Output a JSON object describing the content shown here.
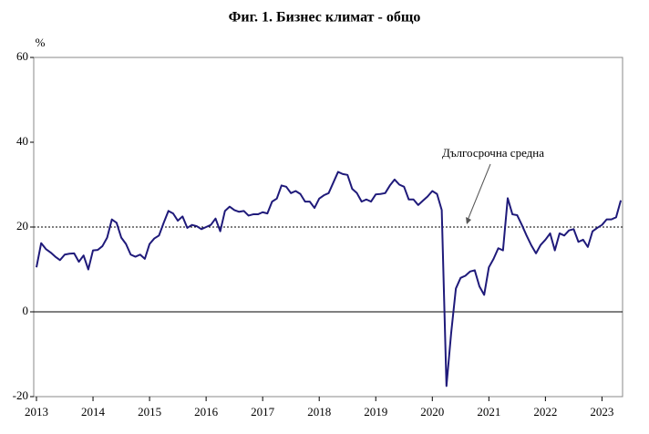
{
  "chart_data": {
    "type": "line",
    "title": "Фиг. 1. Бизнес климат - общо",
    "y_unit": "%",
    "categories": [
      "2013",
      null,
      null,
      null,
      null,
      null,
      null,
      null,
      null,
      null,
      null,
      null,
      "2014",
      null,
      null,
      null,
      null,
      null,
      null,
      null,
      null,
      null,
      null,
      null,
      "2015",
      null,
      null,
      null,
      null,
      null,
      null,
      null,
      null,
      null,
      null,
      null,
      "2016",
      null,
      null,
      null,
      null,
      null,
      null,
      null,
      null,
      null,
      null,
      null,
      "2017",
      null,
      null,
      null,
      null,
      null,
      null,
      null,
      null,
      null,
      null,
      null,
      "2018",
      null,
      null,
      null,
      null,
      null,
      null,
      null,
      null,
      null,
      null,
      null,
      "2019",
      null,
      null,
      null,
      null,
      null,
      null,
      null,
      null,
      null,
      null,
      null,
      "2020",
      null,
      null,
      null,
      null,
      null,
      null,
      null,
      null,
      null,
      null,
      null,
      "2021",
      null,
      null,
      null,
      null,
      null,
      null,
      null,
      null,
      null,
      null,
      null,
      "2022",
      null,
      null,
      null,
      null,
      null,
      null,
      null,
      null,
      null,
      null,
      null,
      "2023",
      null,
      null,
      null,
      null
    ],
    "values": [
      10.5,
      16.2,
      14.8,
      14,
      13,
      12.2,
      13.5,
      13.7,
      13.8,
      11.8,
      13.3,
      10,
      14.5,
      14.6,
      15.5,
      17.5,
      21.8,
      21,
      17.5,
      16,
      13.5,
      13,
      13.5,
      12.5,
      16,
      17.3,
      18,
      21,
      23.8,
      23.2,
      21.5,
      22.5,
      19.8,
      20.5,
      20.2,
      19.5,
      20,
      20.5,
      22,
      19,
      23.8,
      24.8,
      24,
      23.6,
      23.8,
      22.7,
      23,
      23,
      23.5,
      23.2,
      26,
      26.7,
      29.8,
      29.5,
      28,
      28.5,
      27.8,
      26,
      26,
      24.5,
      26.7,
      27.5,
      28,
      30.5,
      33,
      32.5,
      32.3,
      29,
      28,
      26,
      26.5,
      26,
      27.7,
      27.8,
      28,
      29.8,
      31.2,
      30,
      29.5,
      26.5,
      26.5,
      25.2,
      26.2,
      27.2,
      28.5,
      27.8,
      24,
      -17.5,
      -5,
      5.5,
      8,
      8.5,
      9.5,
      9.8,
      6,
      4,
      10.5,
      12.5,
      15,
      14.5,
      26.8,
      23,
      22.8,
      20.5,
      18,
      15.7,
      13.8,
      15.8,
      17,
      18.5,
      14.5,
      18.5,
      18,
      19.2,
      19.5,
      16.5,
      17,
      15.3,
      19,
      19.8,
      20.5,
      21.8,
      21.8,
      22.3,
      26.3
    ],
    "color": "#1f1a7a",
    "average": 20,
    "average_label": "Дългосрочна средна",
    "ylim": [
      -20,
      60
    ],
    "yticks": [
      -20,
      0,
      20,
      40,
      60
    ]
  }
}
